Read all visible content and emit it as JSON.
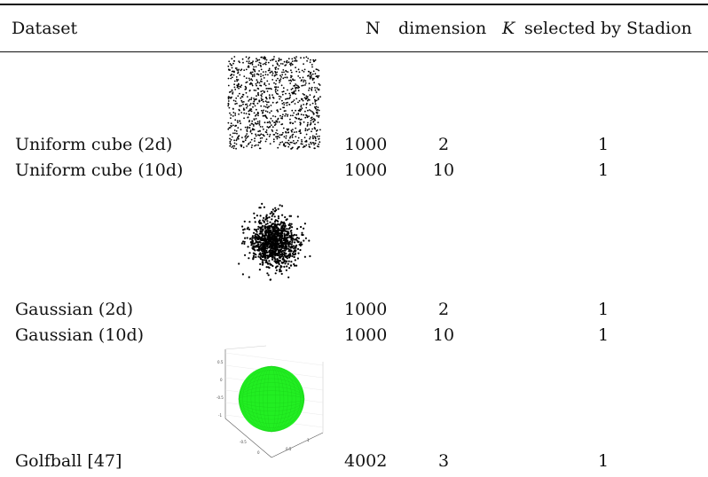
{
  "header": {
    "dataset": "Dataset",
    "n": "N",
    "dimension": "dimension",
    "k": "K",
    "selected_by": "selected by Stadion"
  },
  "rows": [
    {
      "name": "Uniform cube (2d)",
      "n": "1000",
      "dim": "2",
      "k": "1"
    },
    {
      "name": "Uniform cube (10d)",
      "n": "1000",
      "dim": "10",
      "k": "1"
    },
    {
      "name": "Gaussian (2d)",
      "n": "1000",
      "dim": "2",
      "k": "1"
    },
    {
      "name": "Gaussian (10d)",
      "n": "1000",
      "dim": "10",
      "k": "1"
    },
    {
      "name": "Golfball [47]",
      "n": "4002",
      "dim": "3",
      "k": "1"
    }
  ],
  "thumbnails": [
    {
      "name": "uniform-cube-scatter",
      "color": "#000000"
    },
    {
      "name": "gaussian-scatter",
      "color": "#000000"
    },
    {
      "name": "golfball-sphere",
      "color": "#22ee22",
      "axis_ticks": [
        "0.5",
        "0",
        "-0.5",
        "-1",
        "-0.5",
        "0",
        "0.5",
        "1"
      ]
    }
  ]
}
